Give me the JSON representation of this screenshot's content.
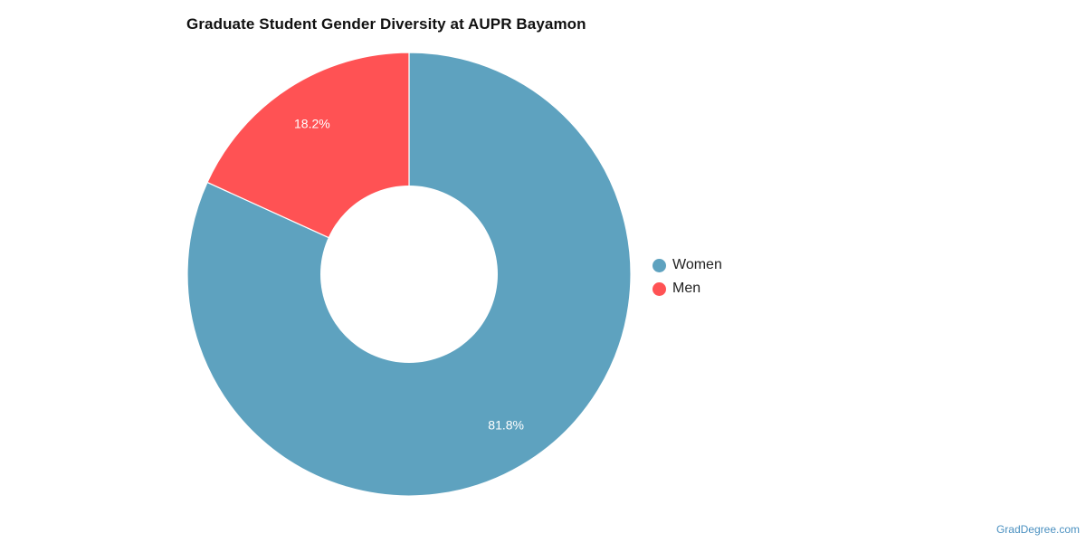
{
  "chart_data": {
    "type": "pie",
    "title": "Graduate Student Gender Diversity at AUPR Bayamon",
    "categories": [
      "Women",
      "Men"
    ],
    "values": [
      81.8,
      18.2
    ],
    "labels": [
      "81.8%",
      "18.2%"
    ],
    "colors": [
      "#5ea2bf",
      "#ff5254"
    ],
    "donut": true,
    "legend": "right"
  },
  "watermark": "GradDegree.com"
}
